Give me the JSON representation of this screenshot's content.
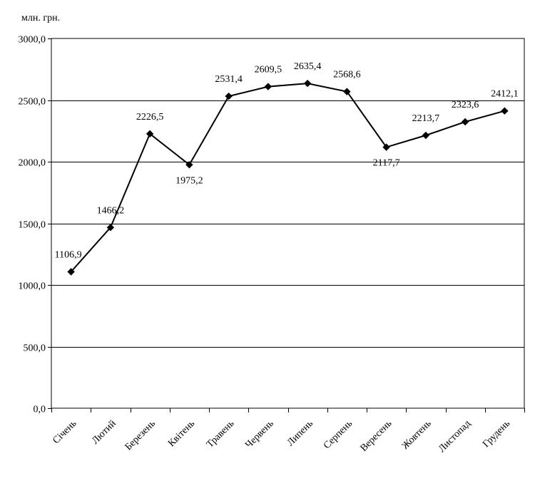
{
  "chart_data": {
    "type": "line",
    "unit_label": "млн. грн.",
    "categories": [
      "Січень",
      "Лютий",
      "Березень",
      "Квітень",
      "Травень",
      "Червень",
      "Липень",
      "Серпень",
      "Вересень",
      "Жовтень",
      "Листопад",
      "Грудень"
    ],
    "series": [
      {
        "values": [
          1106.9,
          1466.2,
          2226.5,
          1975.2,
          2531.4,
          2609.5,
          2635.4,
          2568.6,
          2117.7,
          2213.7,
          2323.6,
          2412.1
        ]
      }
    ],
    "data_labels": [
      "1106,9",
      "1466,2",
      "2226,5",
      "1975,2",
      "2531,4",
      "2609,5",
      "2635,4",
      "2568,6",
      "2117,7",
      "2213,7",
      "2323,6",
      "2412,1"
    ],
    "yticks": [
      0,
      500,
      1000,
      1500,
      2000,
      2500,
      3000
    ],
    "ytick_labels": [
      "0,0",
      "500,0",
      "1000,0",
      "1500,0",
      "2000,0",
      "2500,0",
      "3000,0"
    ],
    "ylim": [
      0,
      3000
    ],
    "grid": true,
    "marker": "diamond",
    "colors": {
      "line": "#000000",
      "grid": "#000000",
      "background": "#ffffff"
    }
  }
}
